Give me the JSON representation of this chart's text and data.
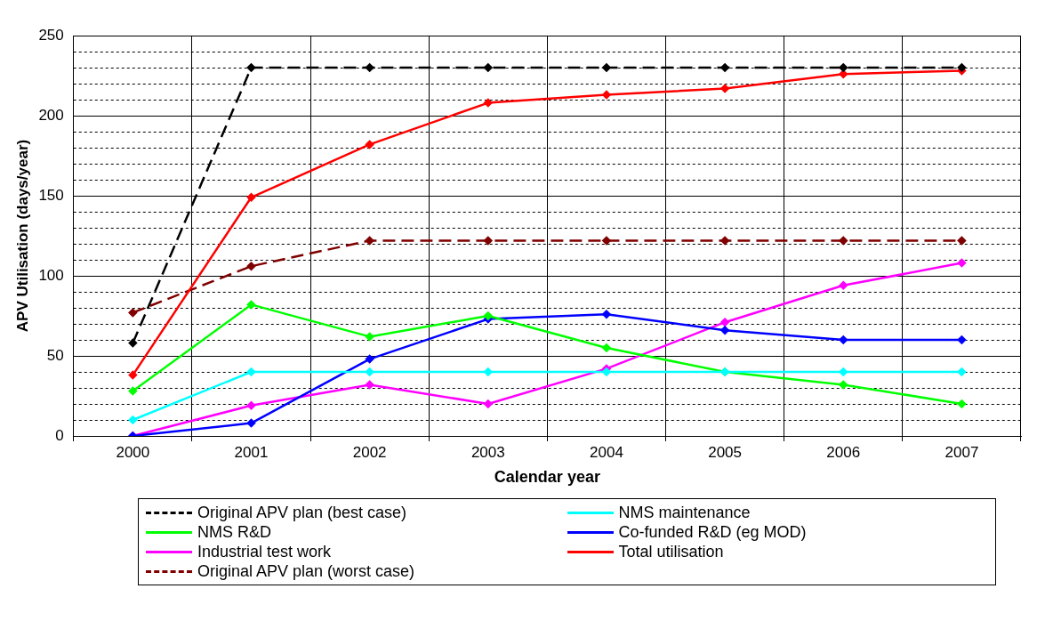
{
  "chart_data": {
    "type": "line",
    "xlabel": "Calendar year",
    "ylabel": "APV Utilisation (days/year)",
    "categories": [
      "2000",
      "2001",
      "2002",
      "2003",
      "2004",
      "2005",
      "2006",
      "2007"
    ],
    "ylim": [
      0,
      250
    ],
    "yticks": [
      0,
      {
        "value": 10,
        "label": null
      },
      {
        "value": 20,
        "label": null
      },
      {
        "value": 30,
        "label": null
      },
      {
        "value": 40,
        "label": null
      },
      50,
      {
        "value": 60,
        "label": null
      },
      {
        "value": 70,
        "label": null
      },
      {
        "value": 80,
        "label": null
      },
      {
        "value": 90,
        "label": null
      },
      100,
      {
        "value": 110,
        "label": null
      },
      {
        "value": 120,
        "label": null
      },
      {
        "value": 130,
        "label": null
      },
      {
        "value": 140,
        "label": null
      },
      150,
      {
        "value": 160,
        "label": null
      },
      {
        "value": 170,
        "label": null
      },
      {
        "value": 180,
        "label": null
      },
      {
        "value": 190,
        "label": null
      },
      200,
      {
        "value": 210,
        "label": null
      },
      {
        "value": 220,
        "label": null
      },
      {
        "value": 230,
        "label": null
      },
      {
        "value": 240,
        "label": null
      },
      250
    ],
    "grid": true,
    "legend": "bottom",
    "marker": "diamond",
    "series": [
      {
        "name": "Original APV plan (best case)",
        "color": "#000000",
        "line_style": "dashed",
        "values": [
          58,
          230,
          230,
          230,
          230,
          230,
          230,
          230
        ]
      },
      {
        "name": "NMS maintenance",
        "color": "#00ffff",
        "values": [
          10,
          40,
          40,
          40,
          40,
          40,
          40,
          40
        ]
      },
      {
        "name": "NMS R&D",
        "color": "#00ff00",
        "values": [
          28,
          82,
          62,
          75,
          55,
          40,
          32,
          20
        ]
      },
      {
        "name": "Co-funded R&D (eg MOD)",
        "color": "#0000ff",
        "values": [
          0,
          8,
          48,
          73,
          76,
          66,
          60,
          60
        ]
      },
      {
        "name": "Industrial test work",
        "color": "#ff00ff",
        "values": [
          0,
          19,
          32,
          20,
          42,
          71,
          94,
          108
        ]
      },
      {
        "name": "Total utilisation",
        "color": "#ff0000",
        "values": [
          38,
          149,
          182,
          208,
          213,
          217,
          226,
          228
        ]
      },
      {
        "name": "Original APV plan (worst case)",
        "color": "#800000",
        "line_style": "dashed",
        "values": [
          77,
          106,
          122,
          122,
          122,
          122,
          122,
          122
        ]
      }
    ]
  }
}
